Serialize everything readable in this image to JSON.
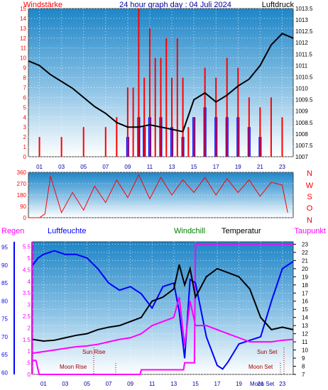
{
  "header": {
    "left": "Windstärke",
    "center": "24 hour graph day : 04 Juli 2024",
    "right": "Luftdruck"
  },
  "compass": [
    "N",
    "W",
    "S",
    "O",
    "N"
  ],
  "legend2": {
    "regen": "Regen",
    "luftfeuchte": "Luftfeuchte",
    "windchill": "Windchill",
    "temperatur": "Temperatur",
    "taupunkt": "Taupunkt"
  },
  "events": {
    "sunrise": "Sun Rise",
    "sunset": "Sun Set",
    "moonrise": "Moon Rise",
    "moonset": "Moon Set",
    "moonset2": "Moon Set"
  },
  "colors": {
    "wind": "#ff0000",
    "gust": "#0000ff",
    "pressure": "#000000",
    "humidity": "#0000ff",
    "temperature": "#000000",
    "dewpoint": "#ff00ff",
    "windchill": "#008000",
    "rain": "#ff00ff",
    "sky_top": "#1e86c8",
    "sky_bottom": "#ffffff"
  },
  "chart_data": [
    {
      "type": "bar",
      "title": "24 hour graph day : 04 Juli 2024",
      "panel": "wind_pressure",
      "x_ticks": [
        "01",
        "03",
        "05",
        "07",
        "09",
        "11",
        "13",
        "15",
        "17",
        "19",
        "21",
        "23"
      ],
      "left_axis": {
        "label": "Windstärke",
        "ticks": [
          "0",
          "1",
          "2",
          "3",
          "4",
          "5",
          "6",
          "7",
          "8",
          "9",
          "10",
          "11",
          "12",
          "13",
          "14",
          "15"
        ],
        "range": [
          0,
          15
        ]
      },
      "right_axis": {
        "label": "Luftdruck",
        "ticks": [
          "1007",
          "1007.5",
          "1008",
          "1008.5",
          "1009",
          "1009.5",
          "1010",
          "1010.5",
          "1011",
          "1011.5",
          "1012",
          "1012.5",
          "1013",
          "1013.5"
        ],
        "range": [
          1007,
          1013.5
        ]
      },
      "series": [
        {
          "name": "Windstärke",
          "kind": "bars",
          "x": [
            1,
            3,
            5,
            7,
            8,
            9,
            9.5,
            10,
            10.5,
            11,
            11.5,
            12,
            12.5,
            13,
            13.5,
            14,
            14.5,
            15,
            16,
            17,
            18,
            19,
            20,
            21,
            22,
            23
          ],
          "values": [
            2,
            2,
            3,
            3,
            4,
            7,
            7,
            15,
            8,
            13,
            10,
            10,
            12,
            8,
            12,
            8,
            3,
            4,
            9,
            8,
            10,
            9,
            6,
            5,
            6,
            4
          ]
        },
        {
          "name": "Windböen",
          "kind": "bars",
          "x": [
            9,
            10,
            10.5,
            11,
            12,
            13,
            14,
            15,
            16,
            17,
            18,
            19,
            20,
            21
          ],
          "values": [
            2,
            4,
            3,
            4,
            4,
            3,
            2,
            4,
            5,
            4,
            4,
            4,
            3,
            2
          ]
        },
        {
          "name": "Luftdruck",
          "kind": "line",
          "x": [
            0,
            1,
            2,
            3,
            4,
            5,
            6,
            7,
            8,
            9,
            10,
            11,
            12,
            13,
            14,
            15,
            16,
            17,
            18,
            19,
            20,
            21,
            22,
            23,
            24
          ],
          "values": [
            1011.2,
            1011.0,
            1010.6,
            1010.3,
            1010.0,
            1009.6,
            1009.2,
            1008.9,
            1008.5,
            1008.3,
            1008.3,
            1008.4,
            1008.3,
            1008.2,
            1008.1,
            1009.5,
            1009.8,
            1009.4,
            1009.7,
            1010.1,
            1010.4,
            1011.0,
            1011.9,
            1012.4,
            1012.2
          ]
        }
      ]
    },
    {
      "type": "line",
      "panel": "wind_direction",
      "left_axis": {
        "ticks": [
          "0",
          "90",
          "180",
          "270",
          "360"
        ],
        "range": [
          0,
          360
        ]
      },
      "series": [
        {
          "name": "Windrichtung",
          "x": [
            0,
            1,
            1.5,
            2,
            3,
            4,
            5,
            6,
            7,
            8,
            9,
            10,
            11,
            12,
            13,
            14,
            15,
            16,
            17,
            18,
            19,
            20,
            21,
            22,
            23,
            23.5
          ],
          "values": [
            0,
            0,
            30,
            330,
            40,
            200,
            60,
            250,
            120,
            300,
            160,
            340,
            150,
            320,
            180,
            300,
            200,
            320,
            180,
            310,
            200,
            300,
            170,
            280,
            260,
            40
          ]
        }
      ]
    },
    {
      "type": "line",
      "panel": "weather",
      "x_ticks": [
        "01",
        "03",
        "05",
        "07",
        "09",
        "11",
        "13",
        "15",
        "17",
        "19",
        "21",
        "23"
      ],
      "left_axis_rain": {
        "label": "Regen",
        "ticks": [
          "0",
          ".5",
          "1",
          "1.5",
          "2",
          "2.5",
          "3",
          "3.5",
          "4",
          "4.5",
          "5",
          "5.5"
        ],
        "range": [
          0,
          5.7
        ]
      },
      "left_axis_humidity": {
        "label": "Luftfeuchte",
        "ticks": [
          "60",
          "65",
          "70",
          "75",
          "80",
          "85",
          "90",
          "95"
        ],
        "range": [
          59.5,
          96.5
        ]
      },
      "right_axis": {
        "label": "Temperatur",
        "ticks": [
          "7",
          "8",
          "9",
          "10",
          "11",
          "12",
          "13",
          "14",
          "15",
          "16",
          "17",
          "18",
          "19",
          "20",
          "21",
          "22",
          "23"
        ],
        "range": [
          7,
          23.3
        ]
      },
      "series": [
        {
          "name": "Luftfeuchte",
          "axis": "humidity",
          "x": [
            0,
            0.5,
            1,
            2,
            3,
            4,
            5,
            6,
            7,
            8,
            9,
            10,
            11,
            12,
            13,
            13.5,
            14,
            14.5,
            15,
            16,
            17,
            17.5,
            18,
            19,
            20,
            21,
            22,
            23,
            24
          ],
          "values": [
            90,
            92,
            93,
            94,
            93,
            93,
            92,
            89,
            85,
            83,
            84,
            82,
            78,
            84,
            85,
            77,
            64,
            86,
            85,
            70,
            62,
            61,
            63,
            68,
            69,
            70,
            80,
            89,
            91
          ]
        },
        {
          "name": "Temperatur",
          "axis": "temp",
          "x": [
            0,
            1,
            2,
            3,
            4,
            5,
            6,
            7,
            8,
            9,
            10,
            11,
            12,
            13,
            13.5,
            14,
            14.5,
            15,
            16,
            17,
            18,
            19,
            20,
            21,
            22,
            23,
            24
          ],
          "values": [
            11.3,
            11.1,
            11.2,
            11.5,
            11.8,
            12.0,
            12.5,
            12.8,
            13.0,
            13.5,
            14.0,
            16.0,
            16.5,
            17.5,
            20.5,
            18.0,
            20.0,
            16.5,
            19.0,
            20.0,
            19.5,
            19.0,
            17.5,
            14.0,
            12.5,
            12.8,
            12.5
          ]
        },
        {
          "name": "Taupunkt",
          "axis": "temp",
          "x": [
            0,
            1,
            2,
            3,
            4,
            5,
            6,
            7,
            8,
            9,
            10,
            11,
            12,
            13,
            13.5,
            14,
            14.5,
            15,
            16,
            17,
            18,
            19,
            20,
            21,
            22,
            23,
            24
          ],
          "values": [
            9.6,
            9.8,
            10.0,
            10.2,
            10.4,
            10.5,
            10.7,
            11.0,
            11.3,
            11.5,
            12.0,
            13.0,
            13.5,
            14.0,
            16.5,
            10.5,
            16.0,
            13.0,
            13.0,
            12.5,
            12.0,
            11.5,
            11.0,
            11.0,
            11.0,
            11.2,
            11.3
          ]
        },
        {
          "name": "Regen",
          "axis": "rain",
          "x": [
            0,
            0.3,
            0.6,
            9.9,
            10,
            13.9,
            14,
            14.9,
            15,
            24
          ],
          "values": [
            0.6,
            0.6,
            0,
            0,
            0.2,
            0.2,
            0.5,
            0.5,
            5.6,
            5.6
          ]
        }
      ]
    }
  ]
}
